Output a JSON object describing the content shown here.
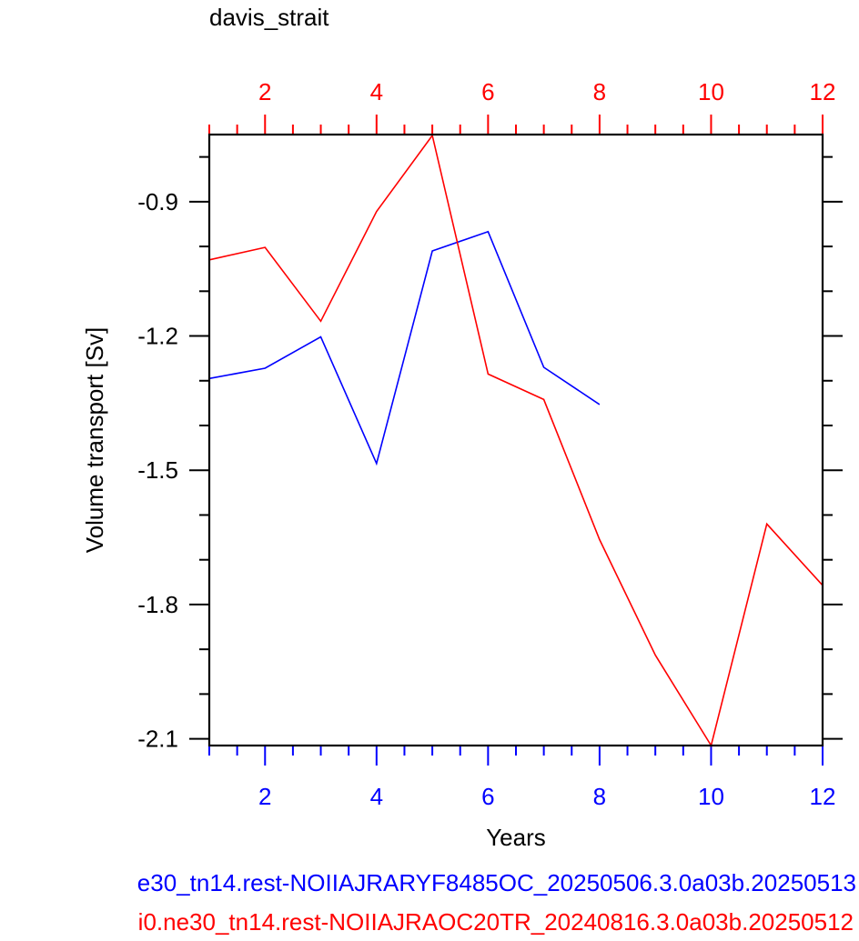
{
  "chart_data": {
    "type": "line",
    "title": "davis_strait",
    "xlabel": "Years",
    "ylabel": "Volume transport [Sv]",
    "xlim": [
      1,
      12
    ],
    "ylim": [
      -2.115,
      -0.75
    ],
    "bottom_axis": {
      "ticks": [
        2,
        4,
        6,
        8,
        10,
        12
      ],
      "color": "#0000ff"
    },
    "top_axis": {
      "ticks": [
        2,
        4,
        6,
        8,
        10,
        12
      ],
      "color": "#ff0000"
    },
    "yticks": [
      -0.9,
      -1.2,
      -1.5,
      -1.8,
      -2.1
    ],
    "ytick_labels": [
      "-0.9",
      "-1.2",
      "-1.5",
      "-1.8",
      "-2.1"
    ],
    "grid": false,
    "series": [
      {
        "name": "e30_tn14.rest-NOIIAJRARYF8485OC_20250506.3.0a03b.20250513",
        "color": "#0000ff",
        "x": [
          1,
          2,
          3,
          4,
          5,
          6,
          7,
          8
        ],
        "y": [
          -1.295,
          -1.272,
          -1.202,
          -1.485,
          -1.01,
          -0.967,
          -1.27,
          -1.353
        ]
      },
      {
        "name": "i0.ne30_tn14.rest-NOIIAJRAOC20TR_20240816.3.0a03b.20250512",
        "color": "#ff0000",
        "x": [
          1,
          2,
          3,
          4,
          5,
          6,
          7,
          8,
          9,
          10,
          11,
          12
        ],
        "y": [
          -1.03,
          -1.002,
          -1.167,
          -0.922,
          -0.752,
          -1.285,
          -1.342,
          -1.655,
          -1.913,
          -2.115,
          -1.62,
          -1.757
        ]
      }
    ]
  }
}
